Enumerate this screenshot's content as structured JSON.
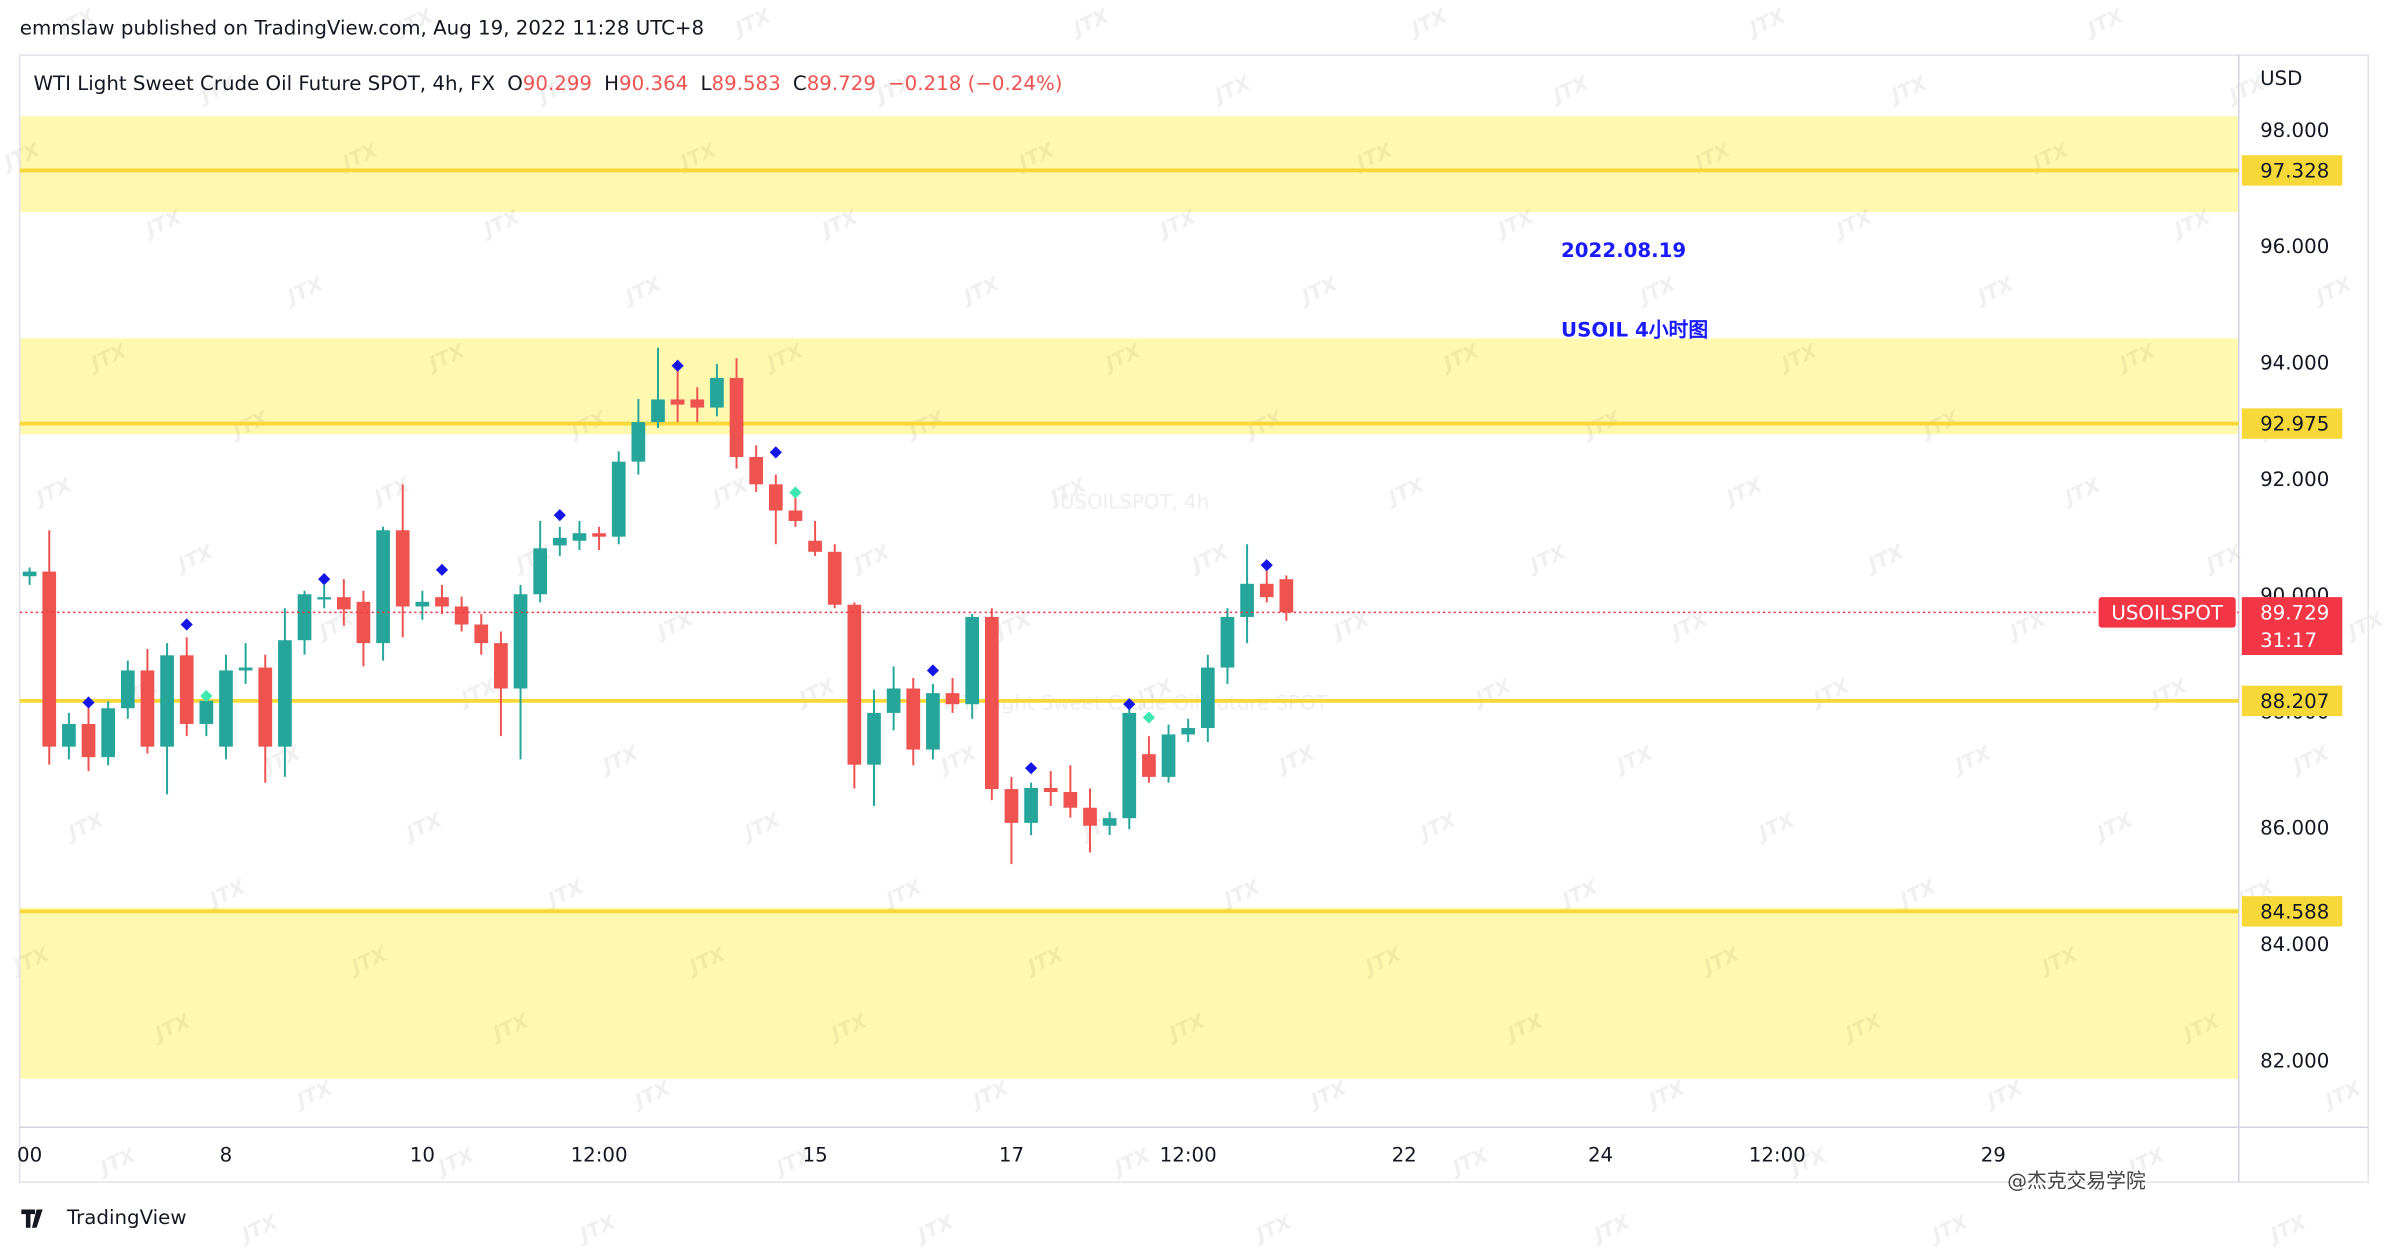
{
  "published": "emmslaw published on TradingView.com, Aug 19, 2022 11:28 UTC+8",
  "header": {
    "symbol": "WTI Light Sweet Crude Oil Future SPOT, 4h, FX",
    "ohlc_labels": [
      "O",
      "H",
      "L",
      "C"
    ],
    "change": "−0.218 (−0.24%)"
  },
  "annotation": [
    "2022.08.19",
    "USOIL 4小时图"
  ],
  "watermark": {
    "symbol": "USOILSPOT, 4h",
    "description": "WTI Light Sweet Crude Oil Future SPOT",
    "logo": "JTX"
  },
  "footer": {
    "brand": "TradingView",
    "author": "@杰克交易学院"
  },
  "chart_data": {
    "type": "candlestick",
    "currency": "USD",
    "up_color": "#26a69a",
    "down_color": "#ef5350",
    "grid": false,
    "xlim": [
      -0.5,
      112.5
    ],
    "xticks": [
      {
        "value": 0,
        "label": "00"
      },
      {
        "value": 10,
        "label": "8"
      },
      {
        "value": 20,
        "label": "10"
      },
      {
        "value": 29,
        "label": "12:00"
      },
      {
        "value": 40,
        "label": "15"
      },
      {
        "value": 50,
        "label": "17"
      },
      {
        "value": 59,
        "label": "12:00"
      },
      {
        "value": 70,
        "label": "22"
      },
      {
        "value": 80,
        "label": "24"
      },
      {
        "value": 89,
        "label": "12:00"
      },
      {
        "value": 100,
        "label": "29"
      }
    ],
    "ylim": [
      80.875,
      99.31
    ],
    "yticks": [
      {
        "value": 82,
        "label": "82.000"
      },
      {
        "value": 84,
        "label": "84.000"
      },
      {
        "value": 86,
        "label": "86.000"
      },
      {
        "value": 88,
        "label": "88.000"
      },
      {
        "value": 90,
        "label": "90.000"
      },
      {
        "value": 92,
        "label": "92.000"
      },
      {
        "value": 94,
        "label": "94.000"
      },
      {
        "value": 96,
        "label": "96.000"
      },
      {
        "value": 98,
        "label": "98.000"
      }
    ],
    "open": [
      90.35,
      90.43,
      87.42,
      87.81,
      87.24,
      88.08,
      88.73,
      87.42,
      88.99,
      87.81,
      87.42,
      88.73,
      88.78,
      87.42,
      89.25,
      89.96,
      89.99,
      89.91,
      89.2,
      91.14,
      89.83,
      89.99,
      89.83,
      89.52,
      89.2,
      88.42,
      90.04,
      90.88,
      90.96,
      91.09,
      91.03,
      92.32,
      93.0,
      93.39,
      93.39,
      93.25,
      93.76,
      92.4,
      91.93,
      91.48,
      90.96,
      90.77,
      89.86,
      87.11,
      88.0,
      88.42,
      87.37,
      88.34,
      88.15,
      89.65,
      86.69,
      86.11,
      86.71,
      86.64,
      86.37,
      86.06,
      86.19,
      87.29,
      86.9,
      87.63,
      87.74,
      88.78,
      89.65,
      90.22,
      90.299
    ],
    "high": [
      90.5,
      91.14,
      88.0,
      88.1,
      88.2,
      88.9,
      89.1,
      89.2,
      89.3,
      88.3,
      89.0,
      89.2,
      89.0,
      89.8,
      90.1,
      90.2,
      90.3,
      90.1,
      91.2,
      91.93,
      90.1,
      90.2,
      90.0,
      89.7,
      89.4,
      90.2,
      91.3,
      91.2,
      91.3,
      91.2,
      92.5,
      93.4,
      94.28,
      93.9,
      93.6,
      94.0,
      94.1,
      92.6,
      92.1,
      91.7,
      91.3,
      90.9,
      89.9,
      88.4,
      88.8,
      88.6,
      88.5,
      88.6,
      89.7,
      89.8,
      86.9,
      86.8,
      87.0,
      87.1,
      86.7,
      86.3,
      88.2,
      87.6,
      87.8,
      87.9,
      89.0,
      89.8,
      90.9,
      90.6,
      90.364
    ],
    "low": [
      90.2,
      87.11,
      87.2,
      87.0,
      87.1,
      87.9,
      87.3,
      86.6,
      87.6,
      87.6,
      87.2,
      88.5,
      86.8,
      86.9,
      89.0,
      89.8,
      89.5,
      88.8,
      88.9,
      89.3,
      89.6,
      89.7,
      89.4,
      89.0,
      87.6,
      87.2,
      89.9,
      90.7,
      90.8,
      90.8,
      90.9,
      92.1,
      92.9,
      93.0,
      93.0,
      93.1,
      92.2,
      91.8,
      90.9,
      91.2,
      90.7,
      89.8,
      86.7,
      86.4,
      87.7,
      87.1,
      87.2,
      88.0,
      87.9,
      86.5,
      85.4,
      85.9,
      86.4,
      86.2,
      85.6,
      85.9,
      86.0,
      86.8,
      86.8,
      87.5,
      87.5,
      88.5,
      89.2,
      89.9,
      89.583
    ],
    "close": [
      90.43,
      87.42,
      87.81,
      87.24,
      88.08,
      88.73,
      87.42,
      88.99,
      87.81,
      88.21,
      88.73,
      88.78,
      87.42,
      89.25,
      90.04,
      89.99,
      89.78,
      89.2,
      91.14,
      89.83,
      89.91,
      89.83,
      89.52,
      89.2,
      88.42,
      90.04,
      90.83,
      91.01,
      91.09,
      91.03,
      92.32,
      93.0,
      93.39,
      93.3,
      93.25,
      93.76,
      92.4,
      91.93,
      91.48,
      91.3,
      90.77,
      89.86,
      87.11,
      88.0,
      88.42,
      87.37,
      88.34,
      88.15,
      89.65,
      86.69,
      86.11,
      86.71,
      86.64,
      86.37,
      86.06,
      86.19,
      88.0,
      86.9,
      87.63,
      87.74,
      88.78,
      89.65,
      90.22,
      89.99,
      89.729
    ],
    "zones": [
      [
        98.26,
        96.61
      ],
      [
        94.44,
        92.79
      ],
      [
        84.65,
        81.71
      ]
    ],
    "zone_color": "#fff9b0",
    "level_color": "#f6d838",
    "levels": [
      97.328,
      92.975,
      88.207,
      84.588
    ],
    "last_price": {
      "symbol": "USOILSPOT",
      "countdown": "31:17",
      "color": "#f23645"
    },
    "markers": [
      {
        "x": 3,
        "y": 88.18,
        "color": "#1515e6"
      },
      {
        "x": 8,
        "y": 89.52,
        "color": "#1515e6"
      },
      {
        "x": 9,
        "y": 88.29,
        "color": "#3ee8b0"
      },
      {
        "x": 15,
        "y": 90.3,
        "color": "#1515e6"
      },
      {
        "x": 21,
        "y": 90.46,
        "color": "#1515e6"
      },
      {
        "x": 27,
        "y": 91.4,
        "color": "#1515e6"
      },
      {
        "x": 33,
        "y": 93.97,
        "color": "#1515e6"
      },
      {
        "x": 38,
        "y": 92.48,
        "color": "#1515e6"
      },
      {
        "x": 39,
        "y": 91.79,
        "color": "#3ee8b0"
      },
      {
        "x": 46,
        "y": 88.73,
        "color": "#1515e6"
      },
      {
        "x": 51,
        "y": 87.05,
        "color": "#1515e6"
      },
      {
        "x": 56,
        "y": 88.15,
        "color": "#1515e6"
      },
      {
        "x": 57,
        "y": 87.92,
        "color": "#3ee8b0"
      },
      {
        "x": 63,
        "y": 90.54,
        "color": "#1515e6"
      }
    ]
  }
}
